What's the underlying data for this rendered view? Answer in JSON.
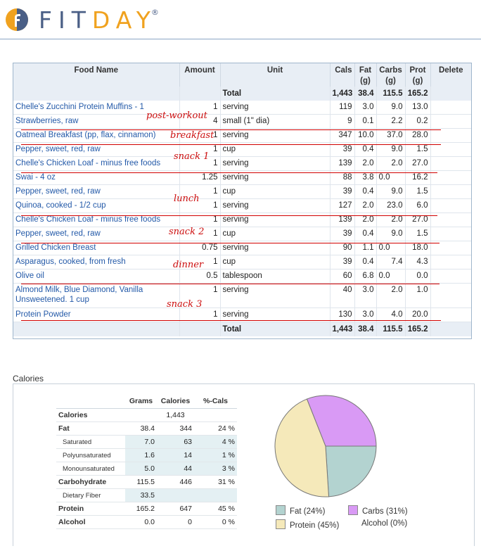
{
  "brand": {
    "name_main": "FIT",
    "name_accent": "DAY",
    "reg": "®"
  },
  "food_log": {
    "headers": {
      "food_name": "Food Name",
      "amount": "Amount",
      "unit": "Unit",
      "cals": "Cals",
      "fat": "Fat\n(g)",
      "carbs": "Carbs\n(g)",
      "prot": "Prot\n(g)",
      "delete": "Delete"
    },
    "total": {
      "label": "Total",
      "cals": "1,443",
      "fat": "38.4",
      "carbs": "115.5",
      "prot": "165.2"
    },
    "rows": [
      {
        "name": "Chelle's Zucchini Protein Muffins - 1",
        "amount": "1",
        "unit": "serving",
        "cals": "119",
        "fat": "3.0",
        "carbs": "9.0",
        "prot": "13.0"
      },
      {
        "name": "Strawberries, raw",
        "amount": "4",
        "unit": "small (1\" dia)",
        "cals": "9",
        "fat": "0.1",
        "carbs": "2.2",
        "prot": "0.2"
      },
      {
        "name": "Oatmeal Breakfast (pp, flax, cinnamon)",
        "amount": "1",
        "unit": "serving",
        "cals": "347",
        "fat": "10.0",
        "carbs": "37.0",
        "prot": "28.0"
      },
      {
        "name": "Pepper, sweet, red, raw",
        "amount": "1",
        "unit": "cup",
        "cals": "39",
        "fat": "0.4",
        "carbs": "9.0",
        "prot": "1.5"
      },
      {
        "name": "Chelle's Chicken Loaf - minus free foods",
        "amount": "1",
        "unit": "serving",
        "cals": "139",
        "fat": "2.0",
        "carbs": "2.0",
        "prot": "27.0"
      },
      {
        "name": "Swai - 4 oz",
        "amount": "1.25",
        "unit": "serving",
        "cals": "88",
        "fat": "3.8",
        "carbs": "0.0",
        "prot": "16.2"
      },
      {
        "name": "Pepper, sweet, red, raw",
        "amount": "1",
        "unit": "cup",
        "cals": "39",
        "fat": "0.4",
        "carbs": "9.0",
        "prot": "1.5"
      },
      {
        "name": "Quinoa, cooked - 1/2 cup",
        "amount": "1",
        "unit": "serving",
        "cals": "127",
        "fat": "2.0",
        "carbs": "23.0",
        "prot": "6.0"
      },
      {
        "name": "Chelle's Chicken Loaf - minus free foods",
        "amount": "1",
        "unit": "serving",
        "cals": "139",
        "fat": "2.0",
        "carbs": "2.0",
        "prot": "27.0"
      },
      {
        "name": "Pepper, sweet, red, raw",
        "amount": "1",
        "unit": "cup",
        "cals": "39",
        "fat": "0.4",
        "carbs": "9.0",
        "prot": "1.5"
      },
      {
        "name": "Grilled Chicken Breast",
        "amount": "0.75",
        "unit": "serving",
        "cals": "90",
        "fat": "1.1",
        "carbs": "0.0",
        "prot": "18.0"
      },
      {
        "name": "Asparagus, cooked, from fresh",
        "amount": "1",
        "unit": "cup",
        "cals": "39",
        "fat": "0.4",
        "carbs": "7.4",
        "prot": "4.3"
      },
      {
        "name": "Olive oil",
        "amount": "0.5",
        "unit": "tablespoon",
        "cals": "60",
        "fat": "6.8",
        "carbs": "0.0",
        "prot": "0.0"
      },
      {
        "name": "Almond Milk, Blue Diamond, Vanilla Unsweetened. 1 cup",
        "amount": "1",
        "unit": "serving",
        "cals": "40",
        "fat": "3.0",
        "carbs": "2.0",
        "prot": "1.0"
      },
      {
        "name": "Protein Powder",
        "amount": "1",
        "unit": "serving",
        "cals": "130",
        "fat": "3.0",
        "carbs": "4.0",
        "prot": "20.0"
      }
    ]
  },
  "annotations": [
    "post-workout",
    "breakfast",
    "snack 1",
    "lunch",
    "snack 2",
    "dinner",
    "snack 3"
  ],
  "calories_section": {
    "title": "Calories",
    "headers": {
      "grams": "Grams",
      "calories": "Calories",
      "pct": "%-Cals"
    },
    "rows": [
      {
        "label": "Calories",
        "grams": "",
        "calories": "1,443",
        "pct": ""
      },
      {
        "label": "Fat",
        "grams": "38.4",
        "calories": "344",
        "pct": "24 %"
      },
      {
        "label": "Saturated",
        "grams": "7.0",
        "calories": "63",
        "pct": "4 %"
      },
      {
        "label": "Polyunsaturated",
        "grams": "1.6",
        "calories": "14",
        "pct": "1 %"
      },
      {
        "label": "Monounsaturated",
        "grams": "5.0",
        "calories": "44",
        "pct": "3 %"
      },
      {
        "label": "Carbohydrate",
        "grams": "115.5",
        "calories": "446",
        "pct": "31 %"
      },
      {
        "label": "Dietary Fiber",
        "grams": "33.5",
        "calories": "",
        "pct": ""
      },
      {
        "label": "Protein",
        "grams": "165.2",
        "calories": "647",
        "pct": "45 %"
      },
      {
        "label": "Alcohol",
        "grams": "0.0",
        "calories": "0",
        "pct": "0 %"
      }
    ]
  },
  "chart_data": {
    "type": "pie",
    "slices": [
      {
        "label": "Fat",
        "value": 24,
        "color": "#b3d3d0",
        "legend": "Fat  (24%)"
      },
      {
        "label": "Carbs",
        "value": 31,
        "color": "#d99af5",
        "legend": "Carbs  (31%)"
      },
      {
        "label": "Protein",
        "value": 45,
        "color": "#f5e9ba",
        "legend": "Protein  (45%)"
      },
      {
        "label": "Alcohol",
        "value": 0,
        "color": "#ffffff",
        "legend": "Alcohol  (0%)"
      }
    ]
  }
}
